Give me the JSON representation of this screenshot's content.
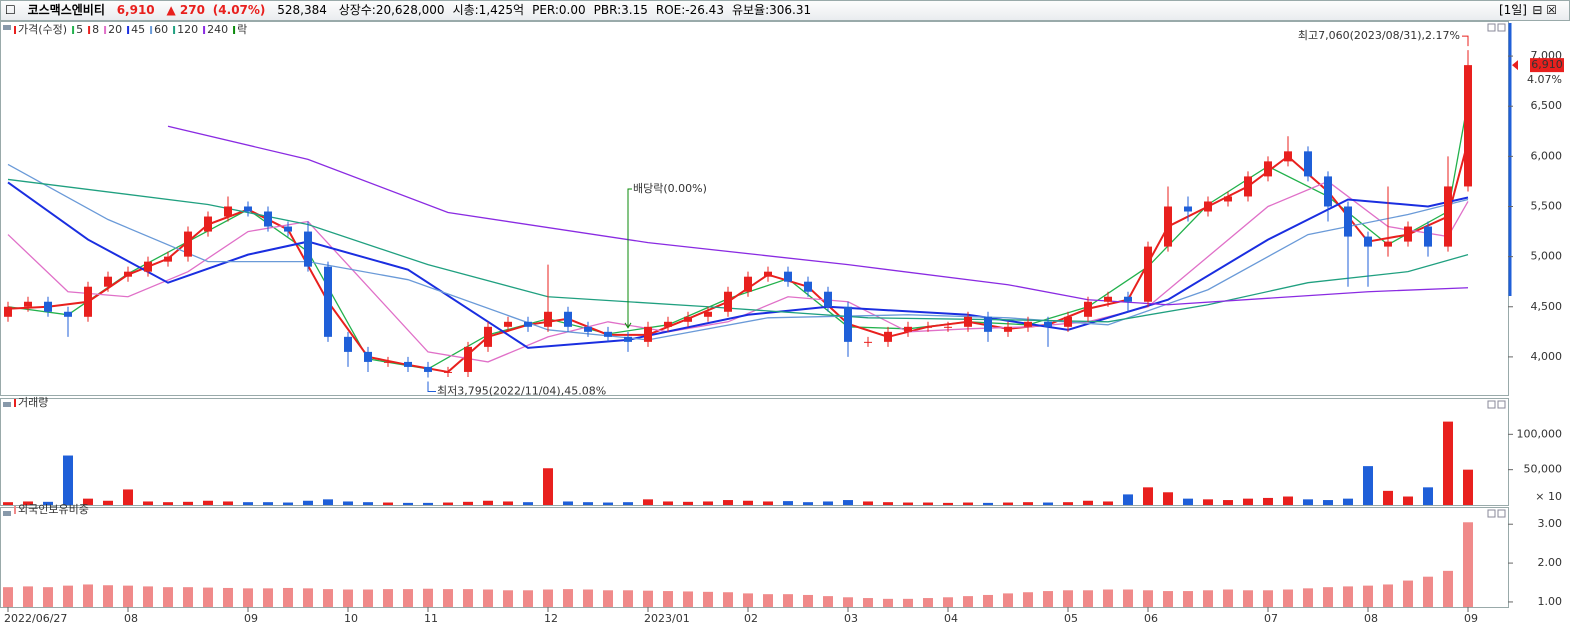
{
  "header": {
    "name": "코스맥스엔비티",
    "price": "6,910",
    "change": "▲ 270",
    "change_pct": "(4.07%)",
    "volume": "528,384",
    "stats": [
      "상장수:20,628,000",
      "시총:1,425억",
      "PER:0.00",
      "PBR:3.15",
      "ROE:-26.43",
      "유보율:306.31"
    ],
    "period": "[1일]"
  },
  "chart_data": [
    {
      "type": "candlestick",
      "name": "가격(수정)",
      "up_color": "#e8201e",
      "down_color": "#1f5fd8",
      "categories": [
        "2022/06/27",
        null,
        null,
        null,
        null,
        null,
        "08",
        null,
        null,
        null,
        null,
        null,
        "09",
        null,
        null,
        null,
        null,
        "10",
        null,
        null,
        null,
        "11",
        null,
        null,
        null,
        null,
        null,
        "12",
        null,
        null,
        null,
        null,
        "2023/01",
        null,
        null,
        null,
        null,
        "02",
        null,
        null,
        null,
        null,
        "03",
        null,
        null,
        null,
        null,
        "04",
        null,
        null,
        null,
        null,
        null,
        "05",
        null,
        null,
        null,
        "06",
        null,
        null,
        null,
        null,
        null,
        "07",
        null,
        null,
        null,
        null,
        "08",
        null,
        null,
        null,
        null,
        "09"
      ],
      "open": [
        4400,
        4500,
        4550,
        4450,
        4400,
        4700,
        4800,
        4850,
        4950,
        5000,
        5250,
        5400,
        5500,
        5450,
        5300,
        5250,
        4900,
        4200,
        4050,
        3950,
        3950,
        3900,
        3850,
        3850,
        4100,
        4300,
        4350,
        4300,
        4450,
        4300,
        4250,
        4200,
        4150,
        4300,
        4350,
        4400,
        4450,
        4650,
        4800,
        4850,
        4750,
        4650,
        4500,
        4150,
        4150,
        4250,
        4300,
        4300,
        4300,
        4400,
        4250,
        4300,
        4350,
        4300,
        4400,
        4550,
        4600,
        4550,
        5100,
        5500,
        5450,
        5550,
        5600,
        5800,
        5950,
        6050,
        5800,
        5500,
        5200,
        5100,
        5150,
        5300,
        5100,
        5700
      ],
      "high": [
        4550,
        4600,
        4600,
        4500,
        4750,
        4850,
        4900,
        5000,
        5050,
        5300,
        5450,
        5600,
        5550,
        5500,
        5350,
        5350,
        4950,
        4250,
        4100,
        4000,
        4000,
        3950,
        3900,
        4150,
        4350,
        4400,
        4400,
        4920,
        4500,
        4350,
        4300,
        4250,
        4350,
        4400,
        4450,
        4500,
        4700,
        4850,
        4900,
        4900,
        4800,
        4700,
        4550,
        4200,
        4300,
        4350,
        4350,
        4350,
        4450,
        4450,
        4350,
        4400,
        4400,
        4450,
        4600,
        4650,
        4650,
        5150,
        5700,
        5600,
        5600,
        5650,
        5850,
        6000,
        6200,
        6100,
        5850,
        5550,
        5250,
        5700,
        5350,
        5350,
        6000,
        7060
      ],
      "low": [
        4350,
        4450,
        4400,
        4200,
        4350,
        4650,
        4750,
        4800,
        4900,
        4950,
        5200,
        5350,
        5400,
        5250,
        5200,
        4850,
        4150,
        3900,
        3850,
        3900,
        3850,
        3795,
        3800,
        3800,
        4050,
        4250,
        4250,
        4250,
        4250,
        4200,
        4150,
        4050,
        4100,
        4250,
        4300,
        4350,
        4400,
        4600,
        4750,
        4700,
        4600,
        4450,
        4000,
        4100,
        4100,
        4200,
        4250,
        4250,
        4250,
        4150,
        4200,
        4250,
        4100,
        4250,
        4350,
        4500,
        4450,
        4500,
        5050,
        5350,
        5400,
        5500,
        5550,
        5750,
        5900,
        5750,
        5350,
        4700,
        4700,
        5000,
        5100,
        5000,
        5050,
        5650
      ],
      "close": [
        4500,
        4550,
        4450,
        4400,
        4700,
        4800,
        4850,
        4950,
        5000,
        5250,
        5400,
        5500,
        5450,
        5300,
        5250,
        4900,
        4200,
        4050,
        3950,
        3950,
        3900,
        3850,
        3850,
        4100,
        4300,
        4350,
        4300,
        4450,
        4300,
        4250,
        4200,
        4150,
        4300,
        4350,
        4400,
        4450,
        4650,
        4800,
        4850,
        4750,
        4650,
        4500,
        4150,
        4150,
        4250,
        4300,
        4300,
        4300,
        4400,
        4250,
        4300,
        4350,
        4300,
        4400,
        4550,
        4600,
        4550,
        5100,
        5500,
        5450,
        5550,
        5600,
        5800,
        5950,
        6050,
        5800,
        5500,
        5200,
        5100,
        5150,
        5300,
        5100,
        5700,
        6910
      ],
      "series": [
        {
          "name": "5",
          "color": "#22b14c",
          "x": [
            0,
            3,
            6,
            9,
            12,
            15,
            18,
            21,
            24,
            27,
            30,
            33,
            36,
            39,
            42,
            45,
            48,
            51,
            54,
            57,
            60,
            63,
            66,
            69,
            72,
            73
          ],
          "values": [
            4500,
            4420,
            4830,
            5150,
            5470,
            5050,
            3980,
            3880,
            4220,
            4380,
            4230,
            4320,
            4580,
            4780,
            4300,
            4280,
            4350,
            4320,
            4500,
            4900,
            5520,
            5900,
            5600,
            5120,
            5450,
            6550
          ]
        },
        {
          "name": "8",
          "color": "#e8201e",
          "x": [
            0,
            2,
            4,
            6,
            8,
            10,
            12,
            14,
            16,
            18,
            20,
            22,
            24,
            26,
            28,
            30,
            32,
            34,
            36,
            38,
            40,
            42,
            44,
            46,
            48,
            50,
            52,
            54,
            56,
            58,
            60,
            62,
            64,
            66,
            68,
            70,
            72,
            73
          ],
          "values": [
            4480,
            4500,
            4550,
            4820,
            4980,
            5320,
            5470,
            5270,
            4550,
            4000,
            3920,
            3850,
            4200,
            4320,
            4380,
            4220,
            4220,
            4380,
            4550,
            4820,
            4700,
            4330,
            4200,
            4300,
            4350,
            4280,
            4320,
            4480,
            4570,
            5300,
            5500,
            5700,
            6000,
            5650,
            5150,
            5220,
            5400,
            6150
          ]
        },
        {
          "name": "20",
          "color": "#e070c8",
          "x": [
            0,
            3,
            6,
            9,
            12,
            15,
            18,
            21,
            24,
            27,
            30,
            33,
            36,
            39,
            42,
            45,
            48,
            51,
            54,
            57,
            60,
            63,
            66,
            69,
            72,
            73
          ],
          "values": [
            5220,
            4650,
            4600,
            4850,
            5250,
            5350,
            4700,
            4050,
            3950,
            4200,
            4350,
            4250,
            4350,
            4600,
            4550,
            4250,
            4280,
            4300,
            4350,
            4500,
            5000,
            5500,
            5750,
            5300,
            5200,
            5550
          ]
        },
        {
          "name": "45",
          "color": "#1a2ee0",
          "x": [
            0,
            4,
            8,
            12,
            15,
            20,
            26,
            31,
            37,
            41,
            48,
            53,
            58,
            63,
            67,
            71,
            73
          ],
          "values": [
            5740,
            5170,
            4740,
            5020,
            5150,
            4870,
            4090,
            4170,
            4420,
            4500,
            4420,
            4270,
            4570,
            5170,
            5570,
            5500,
            5590
          ]
        },
        {
          "name": "60",
          "color": "#6a9ad8",
          "x": [
            0,
            5,
            10,
            15,
            20,
            27,
            32,
            38,
            45,
            50,
            55,
            60,
            65,
            70,
            73
          ],
          "values": [
            5920,
            5370,
            4950,
            4950,
            4770,
            4270,
            4170,
            4390,
            4420,
            4390,
            4320,
            4670,
            5220,
            5420,
            5570
          ]
        },
        {
          "name": "120",
          "color": "#20a080",
          "x": [
            0,
            10,
            15,
            21,
            27,
            35,
            43,
            50,
            55,
            60,
            65,
            70,
            73
          ],
          "values": [
            5770,
            5520,
            5320,
            4920,
            4600,
            4500,
            4390,
            4370,
            4350,
            4520,
            4740,
            4850,
            5020
          ]
        },
        {
          "name": "240",
          "color": "#8a2be2",
          "x": [
            8,
            15,
            22,
            32,
            42,
            50,
            54,
            58,
            68,
            73
          ],
          "values": [
            6300,
            5970,
            5440,
            5140,
            4920,
            4720,
            4570,
            4520,
            4650,
            4690
          ]
        }
      ],
      "ex_dividend": {
        "legend": "락",
        "color": "#0a8a0a",
        "index": 31,
        "label": "배당락(0.00%)"
      },
      "high_label": {
        "index": 73,
        "text": "최고7,060(2023/08/31),2.17%"
      },
      "low_label": {
        "index": 21,
        "text": "최저3,795(2022/11/04),45.08%"
      },
      "price_tag": "6,910",
      "price_tag_pct": "4.07%",
      "ylim": [
        3620,
        7350
      ],
      "yticks": [
        {
          "value": 4000,
          "label": "4,000"
        },
        {
          "value": 4500,
          "label": "4,500"
        },
        {
          "value": 5000,
          "label": "5,000"
        },
        {
          "value": 5500,
          "label": "5,500"
        },
        {
          "value": 6000,
          "label": "6,000"
        },
        {
          "value": 6500,
          "label": "6,500"
        },
        {
          "value": 7000,
          "label": "7,000"
        }
      ]
    },
    {
      "type": "bar",
      "title": "거래량",
      "unit_label": "× 10",
      "values": [
        4000,
        5000,
        4500,
        70000,
        9000,
        6000,
        22000,
        5000,
        4000,
        4500,
        6000,
        5000,
        4000,
        4000,
        3500,
        6000,
        8000,
        5000,
        4000,
        3500,
        3000,
        3000,
        3500,
        4500,
        6000,
        5000,
        4000,
        52000,
        5000,
        4000,
        3500,
        4000,
        8000,
        5000,
        4500,
        5000,
        7000,
        6000,
        5000,
        5500,
        4000,
        5000,
        7000,
        5000,
        4000,
        3500,
        3500,
        3000,
        3500,
        3000,
        3500,
        4000,
        3500,
        4000,
        6000,
        5000,
        15000,
        25000,
        18000,
        9000,
        8000,
        7000,
        9000,
        10000,
        12000,
        8000,
        7000,
        9000,
        55000,
        20000,
        12000,
        25000,
        118000,
        50000
      ],
      "ylim": [
        0,
        133000
      ],
      "yticks": [
        {
          "value": 50000,
          "label": "50,000"
        },
        {
          "value": 100000,
          "label": "100,000"
        }
      ]
    },
    {
      "type": "bar",
      "title": "외국인보유비중",
      "color": "#f08a8a",
      "values": [
        1.38,
        1.4,
        1.38,
        1.42,
        1.45,
        1.43,
        1.42,
        1.4,
        1.38,
        1.38,
        1.37,
        1.36,
        1.35,
        1.35,
        1.36,
        1.35,
        1.33,
        1.32,
        1.32,
        1.33,
        1.33,
        1.34,
        1.33,
        1.33,
        1.32,
        1.3,
        1.3,
        1.32,
        1.33,
        1.32,
        1.3,
        1.3,
        1.29,
        1.28,
        1.27,
        1.26,
        1.25,
        1.22,
        1.2,
        1.2,
        1.18,
        1.15,
        1.12,
        1.1,
        1.08,
        1.08,
        1.1,
        1.12,
        1.15,
        1.18,
        1.22,
        1.25,
        1.28,
        1.3,
        1.3,
        1.32,
        1.32,
        1.3,
        1.28,
        1.28,
        1.3,
        1.32,
        1.3,
        1.3,
        1.32,
        1.35,
        1.38,
        1.4,
        1.42,
        1.45,
        1.55,
        1.65,
        1.8,
        3.05
      ],
      "ylim": [
        0.87,
        3.16
      ],
      "yticks": [
        {
          "value": 1,
          "label": "1.00"
        },
        {
          "value": 2,
          "label": "2.00"
        },
        {
          "value": 3,
          "label": "3.00"
        }
      ]
    }
  ]
}
